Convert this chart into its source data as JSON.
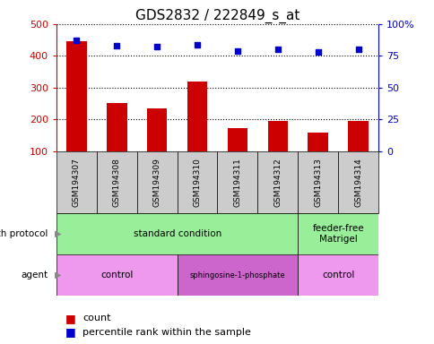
{
  "title": "GDS2832 / 222849_s_at",
  "samples": [
    "GSM194307",
    "GSM194308",
    "GSM194309",
    "GSM194310",
    "GSM194311",
    "GSM194312",
    "GSM194313",
    "GSM194314"
  ],
  "counts": [
    447,
    253,
    235,
    320,
    172,
    197,
    158,
    197
  ],
  "percentile_ranks": [
    87,
    83,
    82,
    84,
    79,
    80,
    78,
    80
  ],
  "ylim_left": [
    100,
    500
  ],
  "ylim_right": [
    0,
    100
  ],
  "yticks_left": [
    100,
    200,
    300,
    400,
    500
  ],
  "ytick_labels_left": [
    "100",
    "200",
    "300",
    "400",
    "500"
  ],
  "yticks_right": [
    0,
    25,
    50,
    75,
    100
  ],
  "ytick_labels_right": [
    "0",
    "25",
    "50",
    "75",
    "100%"
  ],
  "bar_color": "#cc0000",
  "dot_color": "#0000cc",
  "sample_box_color": "#cccccc",
  "growth_protocol_color": "#99ee99",
  "agent_color_light": "#ee99ee",
  "agent_color_dark": "#cc66cc",
  "growth_protocol_groups": [
    {
      "label": "standard condition",
      "start": 0,
      "end": 6
    },
    {
      "label": "feeder-free\nMatrigel",
      "start": 6,
      "end": 8
    }
  ],
  "agent_groups": [
    {
      "label": "control",
      "start": 0,
      "end": 3,
      "dark": false
    },
    {
      "label": "sphingosine-1-phosphate",
      "start": 3,
      "end": 6,
      "dark": true
    },
    {
      "label": "control",
      "start": 6,
      "end": 8,
      "dark": false
    }
  ],
  "left_label": "growth protocol",
  "agent_label": "agent",
  "legend_count_label": "count",
  "legend_pct_label": "percentile rank within the sample",
  "title_color": "#000000",
  "left_axis_color": "#cc0000",
  "right_axis_color": "#0000cc",
  "figwidth": 4.85,
  "figheight": 3.84,
  "dpi": 100
}
